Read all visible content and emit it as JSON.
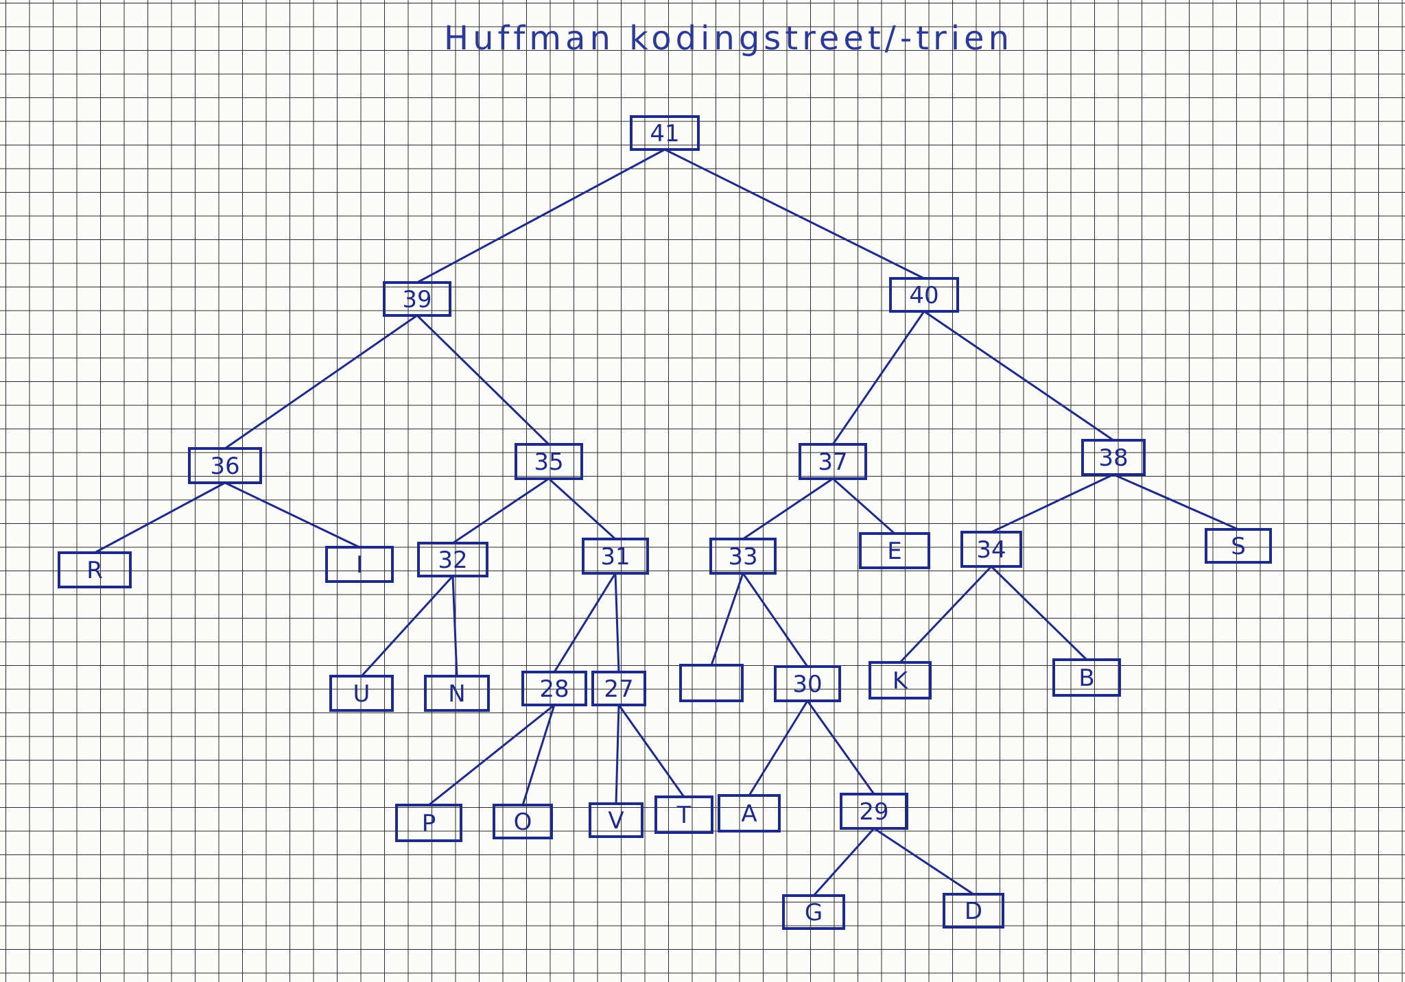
{
  "title": "Huffman kodingstreet/-trien",
  "colors": {
    "ink": "#1d2a8a",
    "ink_light": "#5a6bb5",
    "grid": "#2b2b2b",
    "paper": "#fbfbf9"
  },
  "nodes": [
    {
      "id": "n41",
      "label": "41"
    },
    {
      "id": "n39",
      "label": "39"
    },
    {
      "id": "n40",
      "label": "40"
    },
    {
      "id": "n36",
      "label": "36"
    },
    {
      "id": "n35",
      "label": "35"
    },
    {
      "id": "n37",
      "label": "37"
    },
    {
      "id": "n38",
      "label": "38"
    },
    {
      "id": "nR",
      "label": "R"
    },
    {
      "id": "nI",
      "label": "I"
    },
    {
      "id": "n32",
      "label": "32"
    },
    {
      "id": "n31",
      "label": "31"
    },
    {
      "id": "n33",
      "label": "33"
    },
    {
      "id": "nE",
      "label": "E"
    },
    {
      "id": "n34",
      "label": "34"
    },
    {
      "id": "nS",
      "label": "S"
    },
    {
      "id": "nU",
      "label": "U"
    },
    {
      "id": "nN",
      "label": "N"
    },
    {
      "id": "n28",
      "label": "28"
    },
    {
      "id": "n27",
      "label": "27"
    },
    {
      "id": "nSpace",
      "label": ""
    },
    {
      "id": "n30",
      "label": "30"
    },
    {
      "id": "nK",
      "label": "K"
    },
    {
      "id": "nB",
      "label": "B"
    },
    {
      "id": "nP",
      "label": "P"
    },
    {
      "id": "nO",
      "label": "O"
    },
    {
      "id": "nV",
      "label": "V"
    },
    {
      "id": "nT",
      "label": "T"
    },
    {
      "id": "nA",
      "label": "A"
    },
    {
      "id": "n29",
      "label": "29"
    },
    {
      "id": "nG",
      "label": "G"
    },
    {
      "id": "nD",
      "label": "D"
    }
  ],
  "edges": [
    [
      "n41",
      "n39"
    ],
    [
      "n41",
      "n40"
    ],
    [
      "n39",
      "n36"
    ],
    [
      "n39",
      "n35"
    ],
    [
      "n40",
      "n37"
    ],
    [
      "n40",
      "n38"
    ],
    [
      "n36",
      "nR"
    ],
    [
      "n36",
      "nI"
    ],
    [
      "n35",
      "n32"
    ],
    [
      "n35",
      "n31"
    ],
    [
      "n37",
      "n33"
    ],
    [
      "n37",
      "nE"
    ],
    [
      "n38",
      "n34"
    ],
    [
      "n38",
      "nS"
    ],
    [
      "n32",
      "nU"
    ],
    [
      "n32",
      "nN"
    ],
    [
      "n31",
      "n28"
    ],
    [
      "n31",
      "n27"
    ],
    [
      "n33",
      "nSpace"
    ],
    [
      "n33",
      "n30"
    ],
    [
      "n34",
      "nK"
    ],
    [
      "n34",
      "nB"
    ],
    [
      "n28",
      "nP"
    ],
    [
      "n28",
      "nO"
    ],
    [
      "n27",
      "nV"
    ],
    [
      "n27",
      "nT"
    ],
    [
      "n30",
      "nA"
    ],
    [
      "n30",
      "n29"
    ],
    [
      "n29",
      "nG"
    ],
    [
      "n29",
      "nD"
    ]
  ]
}
